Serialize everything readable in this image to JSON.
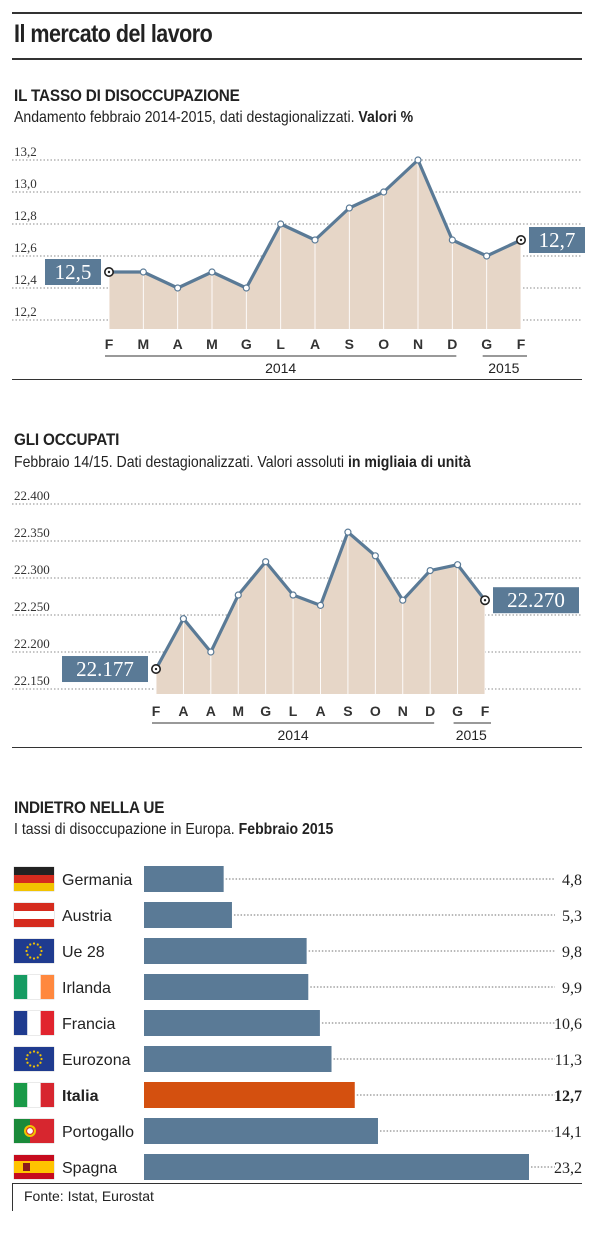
{
  "title": "Il mercato del lavoro",
  "source": "Fonte: Istat, Eurostat",
  "colors": {
    "line": "#5a7a96",
    "area": "#e6d6c7",
    "bar": "#5a7a96",
    "bar_highlight": "#d4500f",
    "callout_bg": "#5a7a96"
  },
  "sections": [
    {
      "title": "IL TASSO DI DISOCCUPAZIONE",
      "subtitle": "Andamento febbraio 2014-2015, dati destagionalizzati.",
      "subtitle_bold": "Valori %"
    },
    {
      "title": "GLI OCCUPATI",
      "subtitle": "Febbraio 14/15. Dati destagionalizzati. Valori assoluti",
      "subtitle_bold": "in migliaia di unità"
    },
    {
      "title": "INDIETRO NELLA UE",
      "subtitle": "I tassi di disoccupazione in Europa.",
      "subtitle_bold": "Febbraio 2015"
    }
  ],
  "chart_data": [
    {
      "type": "area",
      "categories": [
        "F",
        "M",
        "A",
        "M",
        "G",
        "L",
        "A",
        "S",
        "O",
        "N",
        "D",
        "G",
        "F"
      ],
      "years": [
        "2014",
        "2015"
      ],
      "values": [
        12.5,
        12.5,
        12.4,
        12.5,
        12.4,
        12.8,
        12.7,
        12.9,
        13.0,
        13.2,
        12.7,
        12.6,
        12.7
      ],
      "ylim": [
        12.2,
        13.2
      ],
      "yticks": [
        "12,2",
        "12,4",
        "12,6",
        "12,8",
        "13,0",
        "13,2"
      ],
      "ytick_values": [
        12.2,
        12.4,
        12.6,
        12.8,
        13.0,
        13.2
      ],
      "callouts": [
        "12,5",
        "12,7"
      ],
      "grid": true
    },
    {
      "type": "area",
      "categories": [
        "F",
        "A",
        "A",
        "M",
        "G",
        "L",
        "A",
        "S",
        "O",
        "N",
        "D",
        "G",
        "F"
      ],
      "years": [
        "2014",
        "2015"
      ],
      "values": [
        22177,
        22245,
        22200,
        22277,
        22322,
        22277,
        22263,
        22362,
        22330,
        22270,
        22310,
        22318,
        22270
      ],
      "ylim": [
        22150,
        22400
      ],
      "yticks": [
        "22.150",
        "22.200",
        "22.250",
        "22.300",
        "22.350",
        "22.400"
      ],
      "ytick_values": [
        22150,
        22200,
        22250,
        22300,
        22350,
        22400
      ],
      "callouts": [
        "22.177",
        "22.270"
      ],
      "grid": true
    },
    {
      "type": "bar",
      "orientation": "horizontal",
      "categories": [
        "Germania",
        "Austria",
        "Ue 28",
        "Irlanda",
        "Francia",
        "Eurozona",
        "Italia",
        "Portogallo",
        "Spagna"
      ],
      "values": [
        4.8,
        5.3,
        9.8,
        9.9,
        10.6,
        11.3,
        12.7,
        14.1,
        23.2
      ],
      "value_labels": [
        "4,8",
        "5,3",
        "9,8",
        "9,9",
        "10,6",
        "11,3",
        "12,7",
        "14,1",
        "23,2"
      ],
      "flags": [
        "flag-germany",
        "flag-austria",
        "flag-eu",
        "flag-ireland",
        "flag-france",
        "flag-eu",
        "flag-italy",
        "flag-portugal",
        "flag-spain"
      ],
      "highlight": "Italia"
    }
  ]
}
